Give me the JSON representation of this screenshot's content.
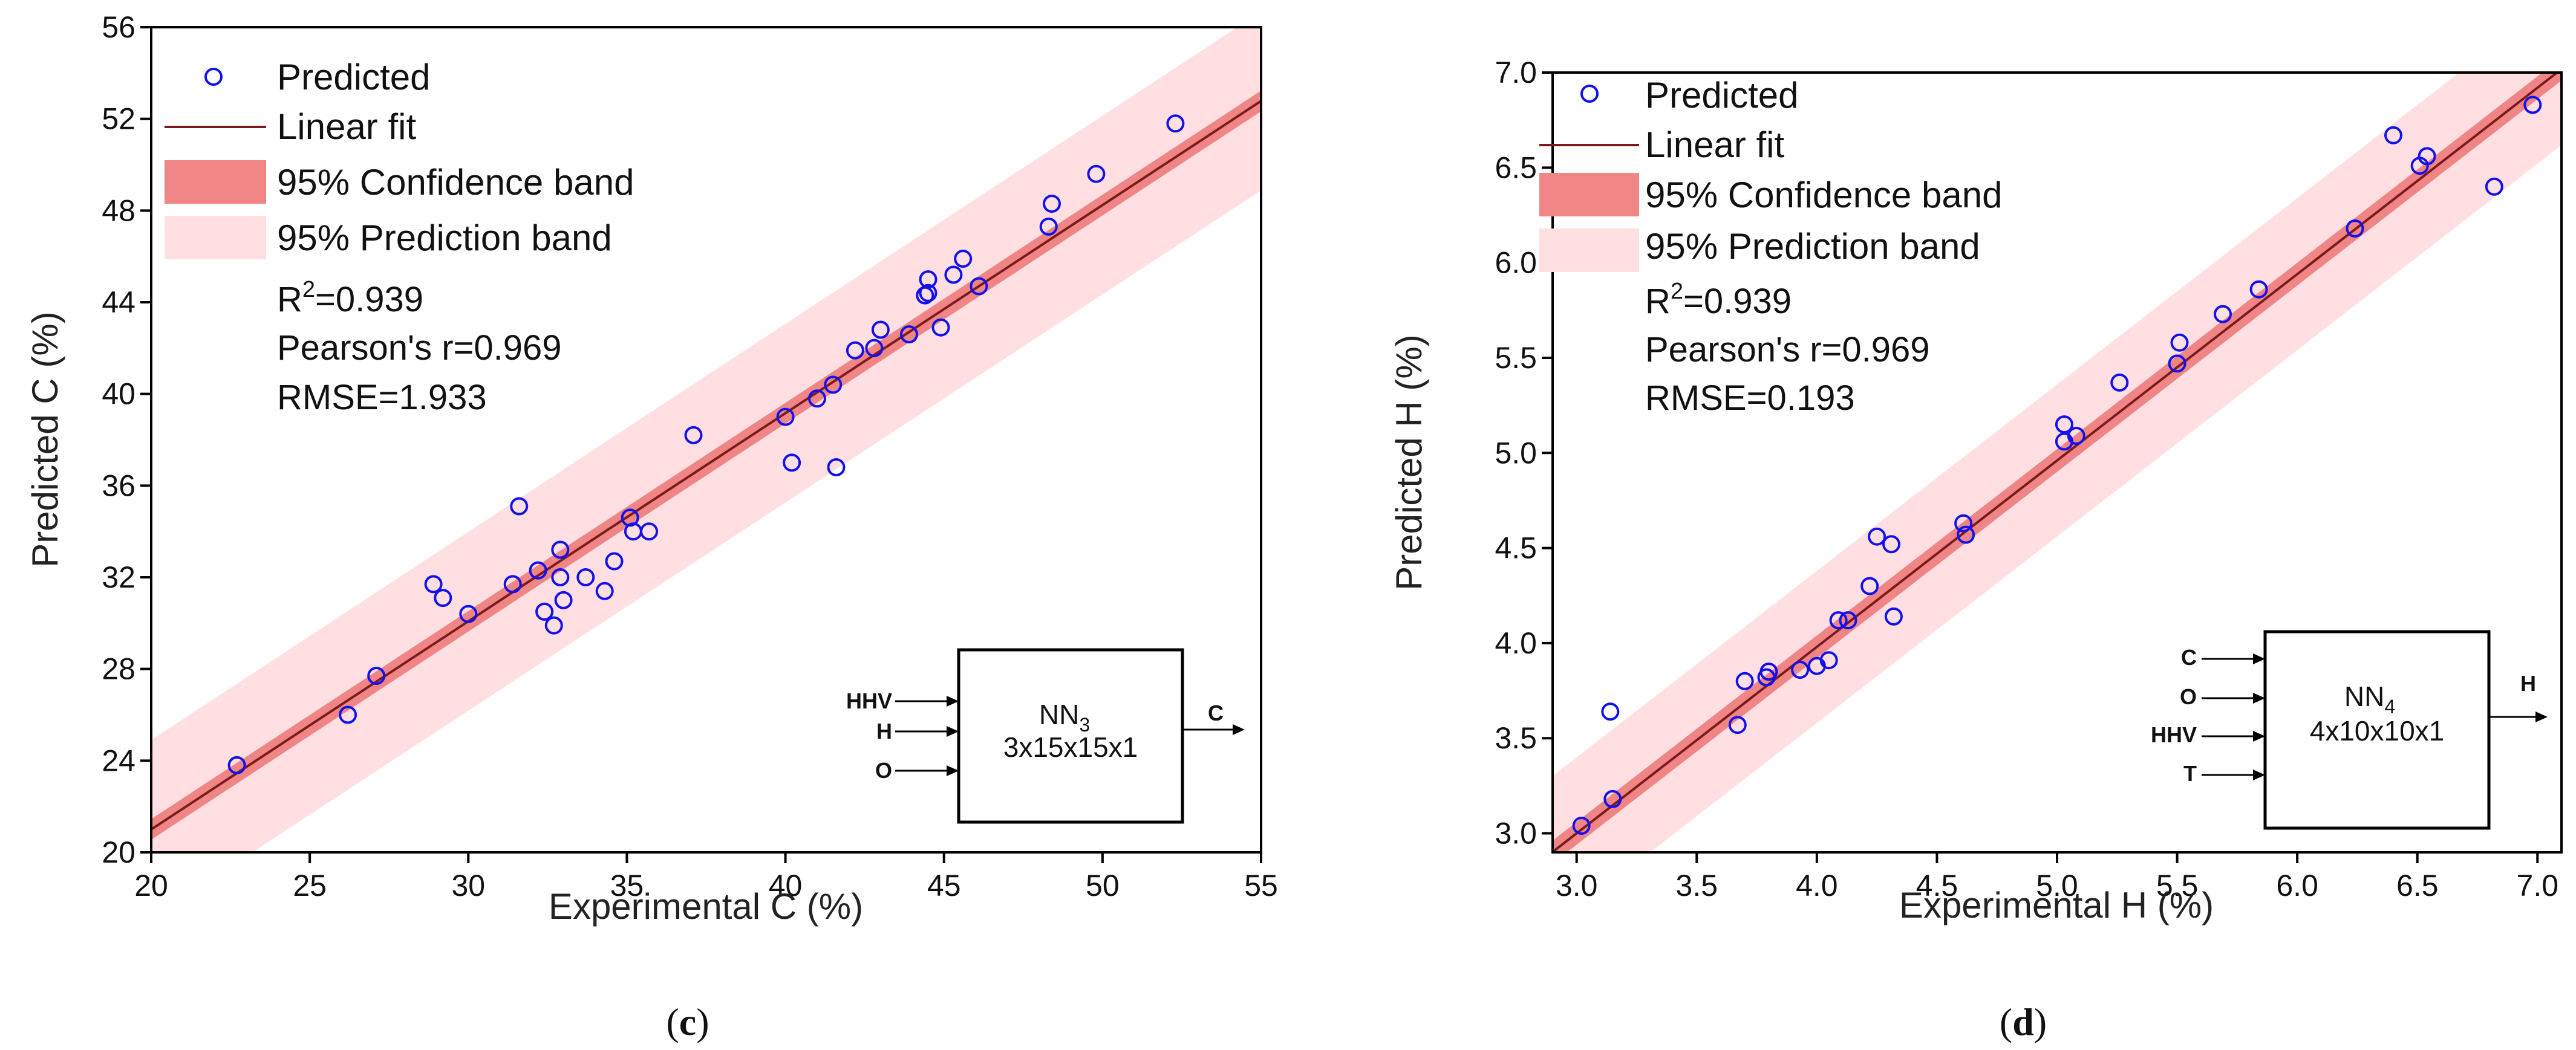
{
  "chart_data": [
    {
      "type": "scatter",
      "panel_label": "(c)",
      "panel_open": "(",
      "panel_letter": "c",
      "panel_close": ")",
      "xlabel": "Experimental C (%)",
      "ylabel": "Predicted C (%)",
      "xlim": [
        20,
        55
      ],
      "ylim": [
        20,
        56
      ],
      "xticks": [
        20,
        25,
        30,
        35,
        40,
        45,
        50,
        55
      ],
      "yticks": [
        20,
        24,
        28,
        32,
        36,
        40,
        44,
        48,
        52,
        56
      ],
      "legend": {
        "predicted": "Predicted",
        "linear_fit": "Linear fit",
        "confidence": "95% Confidence band",
        "prediction": "95% Prediction band"
      },
      "stats": {
        "r2_prefix": "R",
        "r2_sup": "2",
        "r2_value": "=0.939",
        "pearson": "Pearson's r=0.969",
        "rmse": "RMSE=1.933"
      },
      "fit": {
        "slope": 0.908,
        "intercept": 2.84
      },
      "confidence_halfwidth": 0.45,
      "prediction_halfwidth": 3.9,
      "points": [
        [
          22.7,
          23.8
        ],
        [
          26.2,
          26.0
        ],
        [
          27.1,
          27.7
        ],
        [
          28.9,
          31.7
        ],
        [
          29.2,
          31.1
        ],
        [
          30.0,
          30.4
        ],
        [
          31.4,
          31.7
        ],
        [
          31.6,
          35.1
        ],
        [
          32.2,
          32.3
        ],
        [
          32.4,
          30.5
        ],
        [
          32.7,
          29.9
        ],
        [
          32.9,
          32.0
        ],
        [
          32.9,
          33.2
        ],
        [
          33.0,
          31.0
        ],
        [
          33.7,
          32.0
        ],
        [
          34.3,
          31.4
        ],
        [
          34.6,
          32.7
        ],
        [
          35.1,
          34.6
        ],
        [
          35.2,
          34.0
        ],
        [
          35.7,
          34.0
        ],
        [
          37.1,
          38.2
        ],
        [
          40.0,
          39.0
        ],
        [
          40.2,
          37.0
        ],
        [
          41.0,
          39.8
        ],
        [
          41.5,
          40.4
        ],
        [
          41.6,
          36.8
        ],
        [
          42.2,
          41.9
        ],
        [
          42.8,
          42.0
        ],
        [
          43.0,
          42.8
        ],
        [
          43.9,
          42.6
        ],
        [
          44.4,
          44.3
        ],
        [
          44.5,
          44.4
        ],
        [
          44.5,
          45.0
        ],
        [
          44.9,
          42.9
        ],
        [
          45.3,
          45.2
        ],
        [
          45.6,
          45.9
        ],
        [
          46.1,
          44.7
        ],
        [
          48.3,
          47.3
        ],
        [
          48.4,
          48.3
        ],
        [
          49.8,
          49.6
        ],
        [
          52.3,
          51.8
        ]
      ],
      "diagram": {
        "inputs": [
          "HHV",
          "H",
          "O"
        ],
        "name": "NN",
        "sub": "3",
        "arch": "3x15x15x1",
        "output": "C"
      }
    },
    {
      "type": "scatter",
      "panel_label": "(d)",
      "panel_open": "(",
      "panel_letter": "d",
      "panel_close": ")",
      "xlabel": "Experimental H (%)",
      "ylabel": "Predicted H (%)",
      "xlim": [
        2.9,
        7.1
      ],
      "ylim": [
        2.9,
        7.0
      ],
      "xticks": [
        "3.0",
        "3.5",
        "4.0",
        "4.5",
        "5.0",
        "5.5",
        "6.0",
        "6.5",
        "7.0"
      ],
      "yticks": [
        "3.0",
        "3.5",
        "4.0",
        "4.5",
        "5.0",
        "5.5",
        "6.0",
        "6.5",
        "7.0"
      ],
      "legend": {
        "predicted": "Predicted",
        "linear_fit": "Linear fit",
        "confidence": "95% Confidence band",
        "prediction": "95% Prediction band"
      },
      "stats": {
        "r2_prefix": "R",
        "r2_sup": "2",
        "r2_value": "=0.939",
        "pearson": "Pearson's r=0.969",
        "rmse": "RMSE=0.193"
      },
      "fit": {
        "slope": 0.98,
        "intercept": 0.06
      },
      "confidence_halfwidth": 0.06,
      "prediction_halfwidth": 0.4,
      "points": [
        [
          3.02,
          3.04
        ],
        [
          3.14,
          3.64
        ],
        [
          3.15,
          3.18
        ],
        [
          3.67,
          3.57
        ],
        [
          3.7,
          3.8
        ],
        [
          3.79,
          3.82
        ],
        [
          3.8,
          3.85
        ],
        [
          3.93,
          3.86
        ],
        [
          4.0,
          3.88
        ],
        [
          4.05,
          3.91
        ],
        [
          4.09,
          4.12
        ],
        [
          4.13,
          4.12
        ],
        [
          4.22,
          4.3
        ],
        [
          4.25,
          4.56
        ],
        [
          4.31,
          4.52
        ],
        [
          4.32,
          4.14
        ],
        [
          4.61,
          4.63
        ],
        [
          4.62,
          4.57
        ],
        [
          5.03,
          5.15
        ],
        [
          5.03,
          5.06
        ],
        [
          5.08,
          5.09
        ],
        [
          5.26,
          5.37
        ],
        [
          5.5,
          5.47
        ],
        [
          5.51,
          5.58
        ],
        [
          5.69,
          5.73
        ],
        [
          5.84,
          5.86
        ],
        [
          6.24,
          6.18
        ],
        [
          6.4,
          6.67
        ],
        [
          6.51,
          6.51
        ],
        [
          6.54,
          6.56
        ],
        [
          6.82,
          6.4
        ],
        [
          6.98,
          6.83
        ]
      ],
      "diagram": {
        "inputs": [
          "C",
          "O",
          "HHV",
          "T"
        ],
        "name": "NN",
        "sub": "4",
        "arch": "4x10x10x1",
        "output": "H"
      }
    }
  ]
}
